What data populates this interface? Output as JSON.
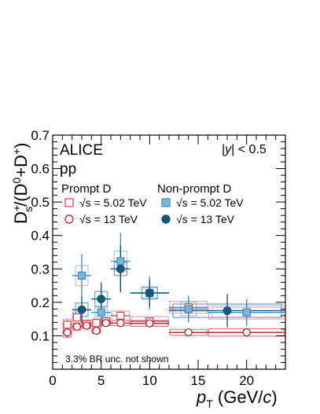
{
  "chart_data": {
    "type": "scatter",
    "title": "ALICE",
    "subtitle": "pp",
    "rapidity_label": "|y| < 0.5",
    "xlabel_main": "p",
    "xlabel_sub": "T",
    "xlabel_unit": " (GeV/c)",
    "ylabel": "D_s^+/(D^0+D^+)",
    "xlim": [
      0,
      24
    ],
    "ylim": [
      0,
      0.7
    ],
    "x_ticks": [
      "0",
      "5",
      "10",
      "15",
      "20"
    ],
    "y_ticks": [
      "0.1",
      "0.2",
      "0.3",
      "0.4",
      "0.5",
      "0.6",
      "0.7"
    ],
    "x_tick_values": [
      0,
      5,
      10,
      15,
      20
    ],
    "y_tick_values": [
      0.1,
      0.2,
      0.3,
      0.4,
      0.5,
      0.6,
      0.7
    ],
    "legend": {
      "prompt_header": "Prompt D",
      "nonprompt_header": "Non-prompt D",
      "entries": [
        "√s = 5.02 TeV",
        "√s = 13 TeV",
        "√s = 5.02 TeV",
        "√s = 13 TeV"
      ]
    },
    "annotation": "3.3% BR unc. not shown",
    "colors": {
      "prompt_502": "#e0404a",
      "prompt_13": "#b01c24",
      "nonprompt_502": "#3c8cc0",
      "nonprompt_13": "#0a4f72",
      "nonprompt_502_fill": "#7db4dc",
      "nonprompt_13_fill": "#0f5a80",
      "prompt_502_sys": "#f2a9ae",
      "prompt_13_sys": "#d88086",
      "nonprompt_502_sys": "#a6cde8",
      "nonprompt_13_sys": "#6fa3c4"
    },
    "series": [
      {
        "key": "prompt_502",
        "marker": "open-square",
        "points": [
          {
            "x": 1.5,
            "y": 0.133,
            "xlo": 1,
            "xhi": 2,
            "stat": 0.015,
            "syst": 0.017
          },
          {
            "x": 2.5,
            "y": 0.155,
            "xlo": 2,
            "xhi": 3,
            "stat": 0.012,
            "syst": 0.016
          },
          {
            "x": 3.5,
            "y": 0.135,
            "xlo": 3,
            "xhi": 4,
            "stat": 0.01,
            "syst": 0.012
          },
          {
            "x": 4.5,
            "y": 0.138,
            "xlo": 4,
            "xhi": 5,
            "stat": 0.01,
            "syst": 0.012
          },
          {
            "x": 5.5,
            "y": 0.143,
            "xlo": 5,
            "xhi": 6,
            "stat": 0.01,
            "syst": 0.012
          },
          {
            "x": 7,
            "y": 0.16,
            "xlo": 6,
            "xhi": 8,
            "stat": 0.012,
            "syst": 0.014
          },
          {
            "x": 10,
            "y": 0.143,
            "xlo": 8,
            "xhi": 12,
            "stat": 0.012,
            "syst": 0.014
          },
          {
            "x": 14,
            "y": 0.185,
            "xlo": 12,
            "xhi": 16,
            "stat": 0.03,
            "syst": 0.018
          },
          {
            "x": 20,
            "y": 0.17,
            "xlo": 16,
            "xhi": 24,
            "stat": 0.04,
            "syst": 0.02
          }
        ]
      },
      {
        "key": "prompt_13",
        "marker": "open-circle",
        "points": [
          {
            "x": 1.5,
            "y": 0.11,
            "xlo": 1,
            "xhi": 2,
            "stat": 0.015,
            "syst": 0.014
          },
          {
            "x": 2.5,
            "y": 0.127,
            "xlo": 2,
            "xhi": 3,
            "stat": 0.008,
            "syst": 0.01
          },
          {
            "x": 3.5,
            "y": 0.13,
            "xlo": 3,
            "xhi": 4,
            "stat": 0.006,
            "syst": 0.008
          },
          {
            "x": 4.5,
            "y": 0.115,
            "xlo": 4,
            "xhi": 5,
            "stat": 0.006,
            "syst": 0.008
          },
          {
            "x": 5.5,
            "y": 0.138,
            "xlo": 5,
            "xhi": 6,
            "stat": 0.006,
            "syst": 0.008
          },
          {
            "x": 7,
            "y": 0.138,
            "xlo": 6,
            "xhi": 8,
            "stat": 0.006,
            "syst": 0.008
          },
          {
            "x": 10,
            "y": 0.137,
            "xlo": 8,
            "xhi": 12,
            "stat": 0.008,
            "syst": 0.009
          },
          {
            "x": 14,
            "y": 0.11,
            "xlo": 12,
            "xhi": 16,
            "stat": 0.01,
            "syst": 0.009
          },
          {
            "x": 20,
            "y": 0.11,
            "xlo": 16,
            "xhi": 24,
            "stat": 0.013,
            "syst": 0.011
          }
        ]
      },
      {
        "key": "nonprompt_502",
        "marker": "filled-square",
        "points": [
          {
            "x": 3,
            "y": 0.28,
            "xlo": 2,
            "xhi": 4,
            "stat": 0.065,
            "syst": 0.03
          },
          {
            "x": 5,
            "y": 0.17,
            "xlo": 4,
            "xhi": 6,
            "stat": 0.045,
            "syst": 0.015
          },
          {
            "x": 7,
            "y": 0.323,
            "xlo": 6,
            "xhi": 8,
            "stat": 0.085,
            "syst": 0.03
          },
          {
            "x": 10,
            "y": 0.228,
            "xlo": 8,
            "xhi": 12,
            "stat": 0.05,
            "syst": 0.015
          },
          {
            "x": 14,
            "y": 0.18,
            "xlo": 12,
            "xhi": 16,
            "stat": 0.04,
            "syst": 0.02
          },
          {
            "x": 20,
            "y": 0.17,
            "xlo": 16,
            "xhi": 24,
            "stat": 0.04,
            "syst": 0.015
          }
        ]
      },
      {
        "key": "nonprompt_13",
        "marker": "filled-circle",
        "points": [
          {
            "x": 3,
            "y": 0.178,
            "xlo": 2,
            "xhi": 4,
            "stat": 0.04,
            "syst": 0.02
          },
          {
            "x": 5,
            "y": 0.21,
            "xlo": 4,
            "xhi": 6,
            "stat": 0.05,
            "syst": 0.022
          },
          {
            "x": 7,
            "y": 0.3,
            "xlo": 6,
            "xhi": 8,
            "stat": 0.07,
            "syst": 0.02
          },
          {
            "x": 10,
            "y": 0.228,
            "xlo": 8,
            "xhi": 12,
            "stat": 0.04,
            "syst": 0.018
          },
          {
            "x": 18,
            "y": 0.175,
            "xlo": 12,
            "xhi": 24,
            "stat": 0.05,
            "syst": 0.02
          }
        ]
      }
    ]
  }
}
